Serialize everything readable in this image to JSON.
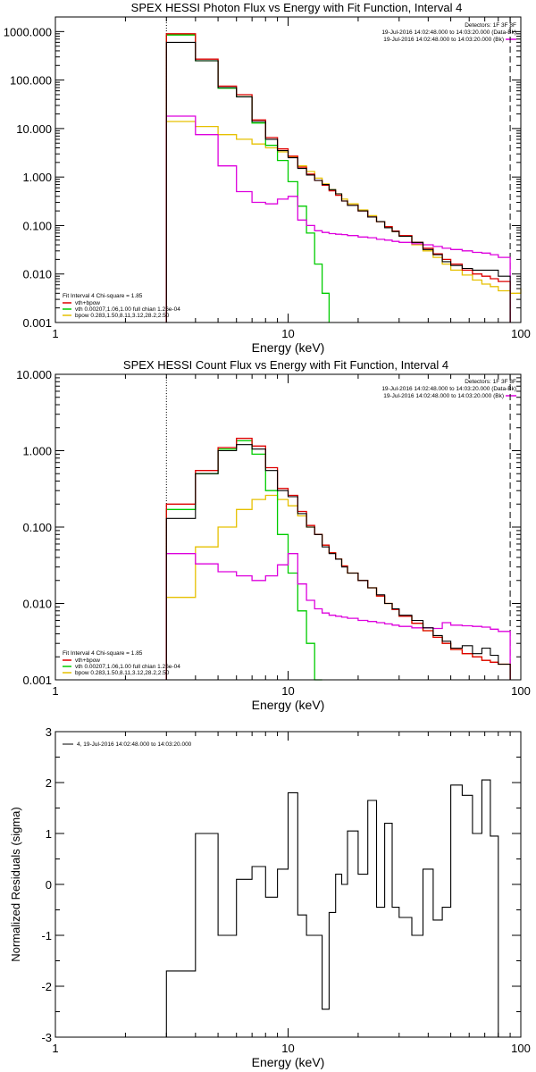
{
  "colors": {
    "data": "#000000",
    "total": "#dd0000",
    "vth": "#00cc00",
    "bpow": "#e6c000",
    "bk": "#dd00dd"
  },
  "chart_data": [
    {
      "type": "line",
      "title": "SPEX HESSI Photon Flux vs Energy with Fit Function, Interval 4",
      "xlabel": "Energy (keV)",
      "ylabel": "",
      "xscale": "log",
      "yscale": "log",
      "xlim": [
        1,
        100
      ],
      "ylim": [
        0.001,
        2000
      ],
      "yticks": [
        "1000.000",
        "100.000",
        "10.000",
        "1.000",
        "0.100",
        "0.010",
        "0.001"
      ],
      "yticks_values": [
        1000,
        100,
        10,
        1,
        0.1,
        0.01,
        0.001
      ],
      "xticks": [
        "1",
        "10",
        "100"
      ],
      "xticks_values": [
        1,
        10,
        100
      ],
      "header": [
        "Detectors: 1F 3F 8F",
        "19-Jul-2016 14:02:48.000 to 14:03:20.000 (Data-Bk)",
        "19-Jul-2016 14:02:48.000 to 14:03:20.000 (Bk)"
      ],
      "fit_label": "Fit Interval 4   Chi-square = 1.85",
      "components": [
        "vth+bpow",
        "vth 0.00207,1.06,1.00  full chian 1.26e-04",
        "bpow 0.283,1.50,8.11,3.12,28.2,2.50"
      ],
      "vlines": [
        {
          "x": 3,
          "style": "dotted"
        },
        {
          "x": 90,
          "style": "dashed"
        }
      ],
      "series": [
        {
          "key": "data",
          "edges": [
            3,
            4,
            5,
            6,
            7,
            8,
            9,
            10,
            11,
            12,
            13,
            14,
            15,
            16,
            17,
            18,
            20,
            22,
            24,
            26,
            28,
            30,
            34,
            38,
            42,
            46,
            50,
            56,
            62,
            68,
            74,
            80,
            90
          ],
          "values": [
            600,
            250,
            70,
            45,
            14,
            6,
            3.5,
            2.5,
            1.5,
            1.1,
            0.85,
            0.7,
            0.55,
            0.45,
            0.32,
            0.26,
            0.2,
            0.15,
            0.12,
            0.09,
            0.075,
            0.06,
            0.045,
            0.032,
            0.025,
            0.018,
            0.015,
            0.013,
            0.012,
            0.012,
            0.012,
            0.009
          ]
        },
        {
          "key": "total",
          "edges": [
            3,
            4,
            5,
            6,
            7,
            8,
            9,
            10,
            11,
            12,
            13,
            14,
            15,
            16,
            17,
            18,
            20,
            22,
            24,
            26,
            28,
            30,
            34,
            38,
            42,
            46,
            50,
            56,
            62,
            68,
            74,
            80,
            90
          ],
          "values": [
            900,
            270,
            75,
            50,
            15,
            6.5,
            3.8,
            2.7,
            1.6,
            1.15,
            0.85,
            0.68,
            0.52,
            0.42,
            0.32,
            0.26,
            0.2,
            0.15,
            0.12,
            0.095,
            0.077,
            0.062,
            0.045,
            0.034,
            0.026,
            0.02,
            0.016,
            0.012,
            0.01,
            0.009,
            0.008,
            0.007
          ]
        },
        {
          "key": "vth",
          "edges": [
            3,
            4,
            5,
            6,
            7,
            8,
            9,
            10,
            11,
            12,
            13,
            14,
            15
          ],
          "values": [
            850,
            250,
            68,
            45,
            13,
            4.5,
            2.2,
            0.8,
            0.25,
            0.07,
            0.016,
            0.004,
            0.001
          ]
        },
        {
          "key": "bpow",
          "edges": [
            3,
            4,
            5,
            6,
            7,
            8,
            9,
            10,
            11,
            12,
            13,
            14,
            15,
            16,
            17,
            18,
            20,
            22,
            24,
            26,
            28,
            30,
            34,
            38,
            42,
            46,
            50,
            56,
            62,
            68,
            74,
            80,
            90,
            100
          ],
          "values": [
            14,
            11,
            7.5,
            6,
            4.8,
            4,
            3.3,
            2.6,
            1.7,
            1.3,
            0.95,
            0.72,
            0.55,
            0.45,
            0.35,
            0.28,
            0.21,
            0.16,
            0.12,
            0.095,
            0.075,
            0.06,
            0.04,
            0.03,
            0.022,
            0.016,
            0.012,
            0.0095,
            0.0075,
            0.0062,
            0.0055,
            0.0045,
            0.004,
            0.005
          ]
        },
        {
          "key": "bk",
          "edges": [
            3,
            4,
            5,
            6,
            7,
            8,
            9,
            10,
            11,
            12,
            13,
            14,
            15,
            16,
            17,
            18,
            20,
            22,
            24,
            26,
            28,
            30,
            34,
            38,
            42,
            46,
            50,
            56,
            62,
            68,
            74,
            80,
            90
          ],
          "values": [
            18,
            7.5,
            1.7,
            0.5,
            0.3,
            0.28,
            0.35,
            0.4,
            0.13,
            0.1,
            0.078,
            0.072,
            0.068,
            0.066,
            0.065,
            0.062,
            0.058,
            0.056,
            0.052,
            0.05,
            0.047,
            0.045,
            0.042,
            0.04,
            0.037,
            0.034,
            0.032,
            0.03,
            0.028,
            0.027,
            0.025,
            0.022
          ]
        }
      ]
    },
    {
      "type": "line",
      "title": "SPEX HESSI Count Flux vs Energy with Fit Function, Interval 4",
      "xlabel": "Energy (keV)",
      "ylabel": "",
      "xscale": "log",
      "yscale": "log",
      "xlim": [
        1,
        100
      ],
      "ylim": [
        0.001,
        10
      ],
      "yticks": [
        "10.000",
        "1.000",
        "0.100",
        "0.010",
        "0.001"
      ],
      "yticks_values": [
        10,
        1,
        0.1,
        0.01,
        0.001
      ],
      "xticks": [
        "1",
        "10",
        "100"
      ],
      "xticks_values": [
        1,
        10,
        100
      ],
      "header": [
        "Detectors: 1F 3F 8F",
        "19-Jul-2016 14:02:48.000 to 14:03:20.000 (Data-Bk)",
        "19-Jul-2016 14:02:48.000 to 14:03:20.000 (Bk)"
      ],
      "fit_label": "Fit Interval 4   Chi-square = 1.85",
      "components": [
        "vth+bpow",
        "vth 0.00207,1.06,1.00  full chian 1.26e-04",
        "bpow 0.283,1.50,8.11,3.12,28.2,2.50"
      ],
      "vlines": [
        {
          "x": 3,
          "style": "dotted"
        },
        {
          "x": 90,
          "style": "dashed"
        }
      ],
      "series": [
        {
          "key": "data",
          "edges": [
            3,
            4,
            5,
            6,
            7,
            8,
            9,
            10,
            11,
            12,
            13,
            14,
            15,
            16,
            17,
            18,
            20,
            22,
            24,
            26,
            28,
            30,
            34,
            38,
            42,
            46,
            50,
            56,
            62,
            68,
            74,
            80,
            90
          ],
          "values": [
            0.13,
            0.5,
            1.0,
            1.2,
            1.05,
            0.55,
            0.3,
            0.25,
            0.15,
            0.1,
            0.08,
            0.055,
            0.045,
            0.038,
            0.03,
            0.025,
            0.02,
            0.016,
            0.013,
            0.01,
            0.0085,
            0.007,
            0.006,
            0.0048,
            0.0038,
            0.0032,
            0.0026,
            0.0028,
            0.0022,
            0.0026,
            0.0021,
            0.0016
          ]
        },
        {
          "key": "total",
          "edges": [
            3,
            4,
            5,
            6,
            7,
            8,
            9,
            10,
            11,
            12,
            13,
            14,
            15,
            16,
            17,
            18,
            20,
            22,
            24,
            26,
            28,
            30,
            34,
            38,
            42,
            46,
            50,
            56,
            62,
            68,
            74,
            80,
            90
          ],
          "values": [
            0.2,
            0.55,
            1.1,
            1.45,
            1.15,
            0.6,
            0.32,
            0.26,
            0.16,
            0.105,
            0.08,
            0.058,
            0.046,
            0.038,
            0.031,
            0.025,
            0.02,
            0.016,
            0.0125,
            0.01,
            0.0083,
            0.0068,
            0.0055,
            0.0044,
            0.0036,
            0.003,
            0.0025,
            0.0022,
            0.002,
            0.0018,
            0.0017,
            0.0016
          ]
        },
        {
          "key": "vth",
          "edges": [
            3,
            4,
            5,
            6,
            7,
            8,
            9,
            10,
            11,
            12,
            13,
            14
          ],
          "values": [
            0.17,
            0.5,
            1.05,
            1.35,
            0.9,
            0.3,
            0.08,
            0.025,
            0.008,
            0.003,
            0.001
          ]
        },
        {
          "key": "bpow",
          "edges": [
            3,
            4,
            5,
            6,
            7,
            8,
            9,
            10,
            11,
            12,
            13,
            14,
            15,
            16,
            17,
            18,
            20,
            22,
            24,
            26,
            28,
            30,
            34,
            38,
            42,
            46,
            50,
            56,
            62,
            68,
            74,
            80,
            90
          ],
          "values": [
            0.012,
            0.055,
            0.1,
            0.17,
            0.23,
            0.26,
            0.23,
            0.19,
            0.14,
            0.1,
            0.08,
            0.058,
            0.046,
            0.038,
            0.031,
            0.025,
            0.02,
            0.016,
            0.0125,
            0.01,
            0.0083,
            0.0068,
            0.0055,
            0.0044,
            0.0036,
            0.003,
            0.0025,
            0.0022,
            0.002,
            0.0018,
            0.0017,
            0.0016
          ]
        },
        {
          "key": "bk",
          "edges": [
            3,
            4,
            5,
            6,
            7,
            8,
            9,
            10,
            11,
            12,
            13,
            14,
            15,
            16,
            17,
            18,
            20,
            22,
            24,
            26,
            28,
            30,
            34,
            38,
            42,
            46,
            50,
            56,
            62,
            68,
            74,
            80,
            90
          ],
          "values": [
            0.045,
            0.033,
            0.026,
            0.023,
            0.02,
            0.023,
            0.032,
            0.045,
            0.018,
            0.011,
            0.0085,
            0.0075,
            0.007,
            0.0068,
            0.0066,
            0.0064,
            0.006,
            0.0058,
            0.0056,
            0.0054,
            0.0052,
            0.005,
            0.0048,
            0.0048,
            0.0047,
            0.0056,
            0.0052,
            0.0051,
            0.005,
            0.0049,
            0.0046,
            0.0043
          ]
        }
      ]
    },
    {
      "type": "line",
      "title": "",
      "xlabel": "Energy (keV)",
      "ylabel": "Normalized Residuals (sigma)",
      "xscale": "log",
      "yscale": "linear",
      "xlim": [
        1,
        100
      ],
      "ylim": [
        -3,
        3
      ],
      "yticks": [
        "3",
        "2",
        "1",
        "0",
        "-1",
        "-2",
        "-3"
      ],
      "yticks_values": [
        3,
        2,
        1,
        0,
        -1,
        -2,
        -3
      ],
      "xticks": [
        "1",
        "10",
        "100"
      ],
      "xticks_values": [
        1,
        10,
        100
      ],
      "legend": "4, 19-Jul-2016 14:02:48.000 to 14:03:20.000",
      "series": [
        {
          "key": "data",
          "edges": [
            3,
            4,
            5,
            6,
            7,
            8,
            9,
            10,
            11,
            12,
            13,
            14,
            15,
            16,
            17,
            18,
            20,
            22,
            24,
            26,
            28,
            30,
            34,
            38,
            42,
            46,
            50,
            56,
            62,
            68,
            74,
            80,
            90
          ],
          "values": [
            -1.7,
            1.0,
            -1.0,
            0.1,
            0.35,
            -0.25,
            0.3,
            1.8,
            -0.6,
            -1.0,
            -1.0,
            -2.45,
            -0.55,
            0.2,
            0.0,
            1.05,
            0.2,
            1.65,
            -0.45,
            1.2,
            -0.45,
            -0.65,
            -1.0,
            0.3,
            -0.7,
            -0.45,
            1.95,
            1.75,
            1.0,
            2.05,
            0.95,
            -3.0
          ]
        }
      ]
    }
  ]
}
